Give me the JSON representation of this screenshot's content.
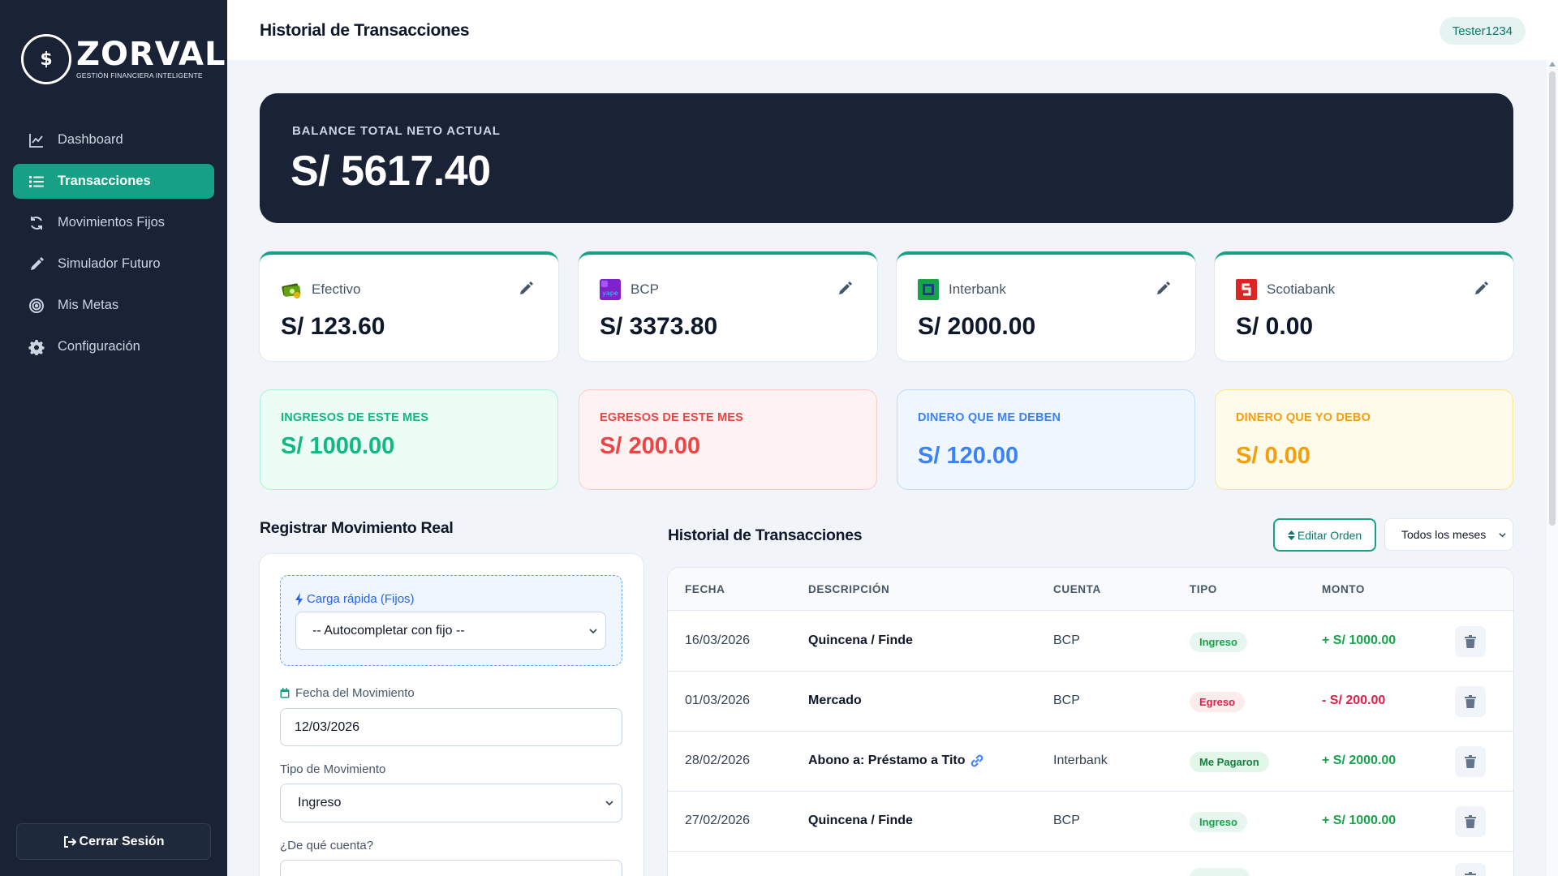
{
  "brand": {
    "name": "ZORVAL",
    "tagline": "GESTIÓN FINANCIERA INTELIGENTE",
    "logo_mark": "$"
  },
  "sidebar": {
    "items": [
      {
        "label": "Dashboard",
        "icon": "chart-line-icon",
        "active": false
      },
      {
        "label": "Transacciones",
        "icon": "list-icon",
        "active": true
      },
      {
        "label": "Movimientos Fijos",
        "icon": "sync-icon",
        "active": false
      },
      {
        "label": "Simulador Futuro",
        "icon": "pencil-icon",
        "active": false
      },
      {
        "label": "Mis Metas",
        "icon": "target-icon",
        "active": false
      },
      {
        "label": "Configuración",
        "icon": "gear-icon",
        "active": false
      }
    ],
    "logout_label": "Cerrar Sesión"
  },
  "header": {
    "title": "Historial de Transacciones",
    "user": "Tester1234"
  },
  "balance": {
    "label": "BALANCE TOTAL NETO ACTUAL",
    "value": "S/ 5617.40"
  },
  "accounts": [
    {
      "name": "Efectivo",
      "value": "S/ 123.60",
      "icon": "cash-icon"
    },
    {
      "name": "BCP",
      "value": "S/ 3373.80",
      "icon": "bcp-yape-icon"
    },
    {
      "name": "Interbank",
      "value": "S/ 2000.00",
      "icon": "interbank-icon"
    },
    {
      "name": "Scotiabank",
      "value": "S/ 0.00",
      "icon": "scotiabank-icon"
    }
  ],
  "summary": [
    {
      "label": "INGRESOS DE ESTE MES",
      "value": "S/ 1000.00"
    },
    {
      "label": "EGRESOS DE ESTE MES",
      "value": "S/ 200.00"
    },
    {
      "label": "DINERO QUE ME DEBEN",
      "value": "S/ 120.00"
    },
    {
      "label": "DINERO QUE YO DEBO",
      "value": "S/ 0.00"
    }
  ],
  "colors": {
    "sidebar_bg": "#1a2235",
    "accent": "#16a085",
    "income": "#16a34a",
    "expense": "#e11d48",
    "owed_to_me": "#3b82f6",
    "i_owe": "#f59e0b"
  },
  "form": {
    "title": "Registrar Movimiento Real",
    "quick_label": "Carga rápida (Fijos)",
    "quick_select": "-- Autocompletar con fijo --",
    "date_label": "Fecha del Movimiento",
    "date_value": "12/03/2026",
    "type_label": "Tipo de Movimiento",
    "type_value": "Ingreso",
    "account_label": "¿De qué cuenta?"
  },
  "history": {
    "title": "Historial de Transacciones",
    "edit_order_label": "Editar Orden",
    "month_filter": "Todos los meses",
    "columns": [
      "FECHA",
      "DESCRIPCIÓN",
      "CUENTA",
      "TIPO",
      "MONTO"
    ],
    "rows": [
      {
        "date": "16/03/2026",
        "desc": "Quincena / Finde",
        "account": "BCP",
        "type": "Ingreso",
        "amount": "+ S/ 1000.00"
      },
      {
        "date": "01/03/2026",
        "desc": "Mercado",
        "account": "BCP",
        "type": "Egreso",
        "amount": "- S/ 200.00"
      },
      {
        "date": "28/02/2026",
        "desc": "Abono a: Préstamo a Tito",
        "account": "Interbank",
        "type": "Me Pagaron",
        "amount": "+ S/ 2000.00"
      },
      {
        "date": "27/02/2026",
        "desc": "Quincena / Finde",
        "account": "BCP",
        "type": "Ingreso",
        "amount": "+ S/ 1000.00"
      }
    ]
  }
}
